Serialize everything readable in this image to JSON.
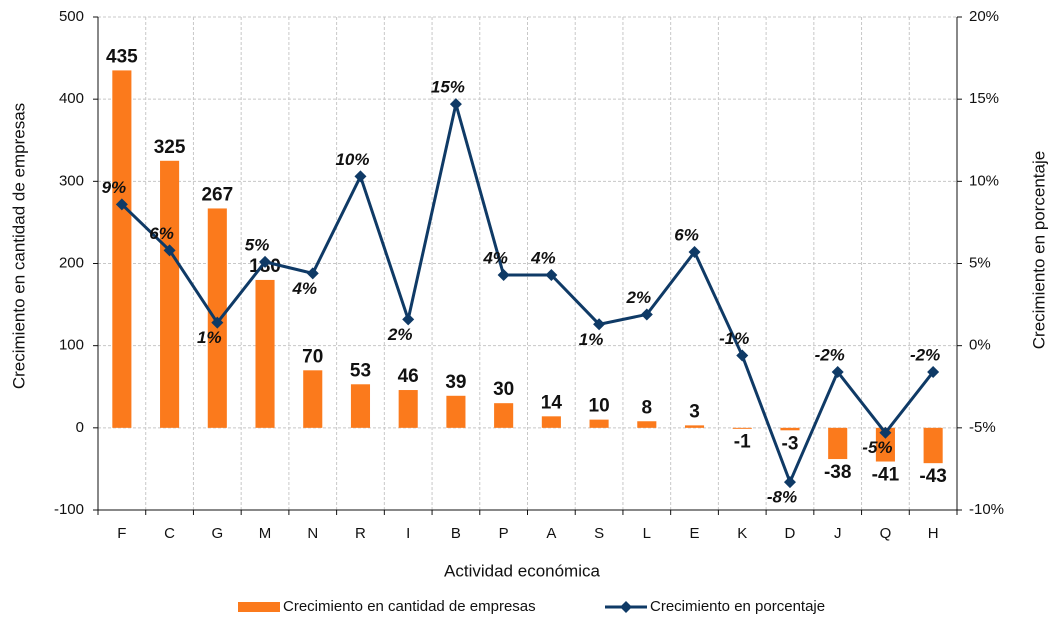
{
  "chart_data": {
    "type": "bar_line",
    "categories": [
      "F",
      "C",
      "G",
      "M",
      "N",
      "R",
      "I",
      "B",
      "P",
      "A",
      "S",
      "L",
      "E",
      "K",
      "D",
      "J",
      "Q",
      "H"
    ],
    "xlabel": "Actividad económica",
    "ylabel": "Crecimiento en cantidad de empresas",
    "y2label": "Crecimiento en porcentaje",
    "ylim": [
      -100,
      500
    ],
    "yticks": [
      -100,
      0,
      100,
      200,
      300,
      400,
      500
    ],
    "y2lim": [
      -10,
      20
    ],
    "y2ticks": [
      {
        "value": -10,
        "label": "-10%"
      },
      {
        "value": -5,
        "label": "-5%"
      },
      {
        "value": 0,
        "label": "0%"
      },
      {
        "value": 5,
        "label": "5%"
      },
      {
        "value": 10,
        "label": "10%"
      },
      {
        "value": 15,
        "label": "15%"
      },
      {
        "value": 20,
        "label": "20%"
      }
    ],
    "grid": true,
    "series": [
      {
        "name": "Crecimiento en cantidad de empresas",
        "type": "bar",
        "color": "#fb7a1c",
        "values": [
          435,
          325,
          267,
          180,
          70,
          53,
          46,
          39,
          30,
          14,
          10,
          8,
          3,
          -1,
          -3,
          -38,
          -41,
          -43
        ]
      },
      {
        "name": "Crecimiento en porcentaje",
        "type": "line",
        "axis": "y2",
        "color": "#0f3a66",
        "values": [
          8.6,
          5.8,
          1.4,
          5.1,
          4.4,
          10.3,
          1.6,
          14.7,
          4.3,
          4.3,
          1.3,
          1.9,
          5.7,
          -0.6,
          -8.3,
          -1.6,
          -5.3,
          -1.6
        ],
        "value_labels": [
          "9%",
          "6%",
          "1%",
          "5%",
          "4%",
          "10%",
          "2%",
          "15%",
          "4%",
          "4%",
          "1%",
          "2%",
          "6%",
          "-1%",
          "-8%",
          "-2%",
          "-5%",
          "-2%"
        ]
      }
    ]
  }
}
